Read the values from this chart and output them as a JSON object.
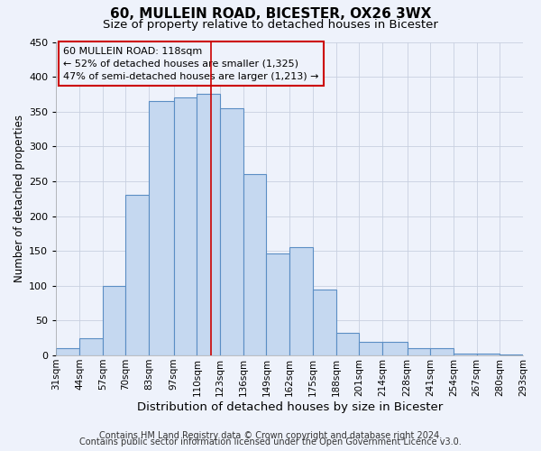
{
  "title": "60, MULLEIN ROAD, BICESTER, OX26 3WX",
  "subtitle": "Size of property relative to detached houses in Bicester",
  "xlabel": "Distribution of detached houses by size in Bicester",
  "ylabel": "Number of detached properties",
  "footer_line1": "Contains HM Land Registry data © Crown copyright and database right 2024.",
  "footer_line2": "Contains public sector information licensed under the Open Government Licence v3.0.",
  "bin_labels": [
    "31sqm",
    "44sqm",
    "57sqm",
    "70sqm",
    "83sqm",
    "97sqm",
    "110sqm",
    "123sqm",
    "136sqm",
    "149sqm",
    "162sqm",
    "175sqm",
    "188sqm",
    "201sqm",
    "214sqm",
    "228sqm",
    "241sqm",
    "254sqm",
    "267sqm",
    "280sqm",
    "293sqm"
  ],
  "bin_edges": [
    31,
    44,
    57,
    70,
    83,
    97,
    110,
    123,
    136,
    149,
    162,
    175,
    188,
    201,
    214,
    228,
    241,
    254,
    267,
    280,
    293
  ],
  "bar_heights": [
    10,
    25,
    100,
    230,
    365,
    370,
    375,
    355,
    260,
    147,
    155,
    95,
    33,
    20,
    20,
    10,
    10,
    3,
    3,
    1
  ],
  "bar_color": "#c5d8f0",
  "bar_edge_color": "#5b8ec4",
  "property_line_x": 118,
  "property_line_color": "#cc0000",
  "annotation_text": "60 MULLEIN ROAD: 118sqm\n← 52% of detached houses are smaller (1,325)\n47% of semi-detached houses are larger (1,213) →",
  "annotation_box_edge": "#cc0000",
  "ylim": [
    0,
    450
  ],
  "yticks": [
    0,
    50,
    100,
    150,
    200,
    250,
    300,
    350,
    400,
    450
  ],
  "background_color": "#eef2fb",
  "grid_color": "#c8d0e0",
  "title_fontsize": 11,
  "subtitle_fontsize": 9.5,
  "ylabel_fontsize": 8.5,
  "xlabel_fontsize": 9.5,
  "tick_fontsize": 7.5,
  "ytick_fontsize": 8,
  "footer_fontsize": 7,
  "annot_fontsize": 8
}
